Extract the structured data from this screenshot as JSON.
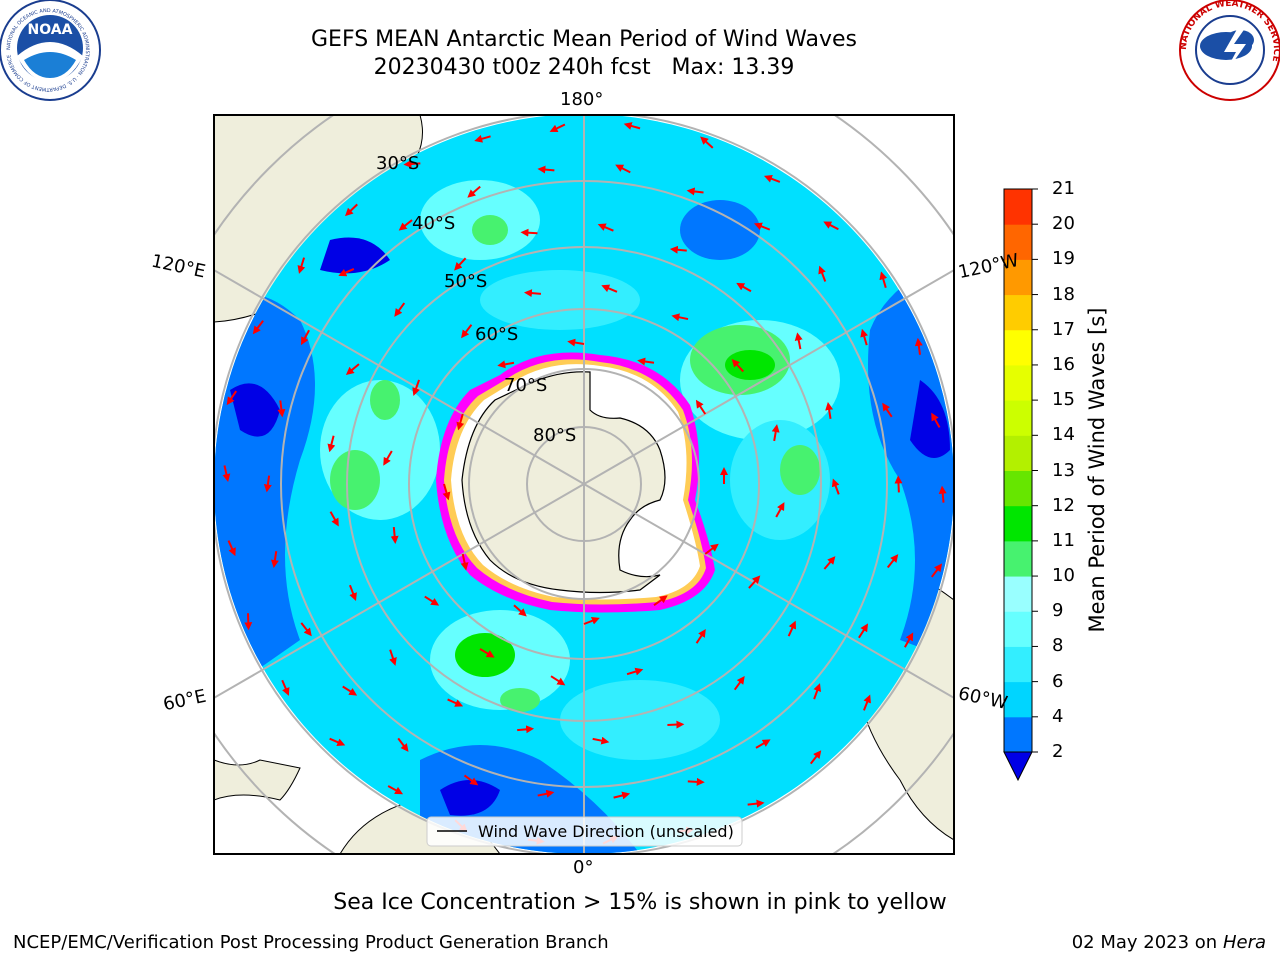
{
  "title_line1": "GEFS MEAN Antarctic Mean Period of Wind Waves",
  "title_line2": "20230430 t00z 240h fcst   Max: 13.39",
  "subtitle": "Sea Ice Concentration > 15% is shown in pink to yellow",
  "credit": "NCEP/EMC/Verification Post Processing Product Generation Branch",
  "date_text": "02 May 2023 on",
  "date_host": "Hera",
  "logos": {
    "left": "noaa-logo",
    "right": "nws-logo",
    "left_ring_text": "NATIONAL OCEANIC AND ATMOSPHERIC ADMINISTRATION · U.S. DEPARTMENT OF COMMERCE",
    "left_center_text": "NOAA",
    "right_ring_text": "NATIONAL WEATHER SERVICE"
  },
  "legend_label": "Wind Wave Direction (unscaled)",
  "map": {
    "projection": "south-polar-stereographic",
    "lon_labels": {
      "top": "180°",
      "bottom": "0°",
      "upper_left": "120°E",
      "upper_right": "120°W",
      "lower_left": "60°E",
      "lower_right": "60°W"
    },
    "lat_labels": [
      "30°S",
      "40°S",
      "50°S",
      "60°S",
      "70°S",
      "80°S"
    ],
    "colors": {
      "land": "#efeedc",
      "ice": "#ffffff",
      "ice_edge": "#ff00ff",
      "grid": "#b3b3b3",
      "arrow": "#ff0000"
    }
  },
  "colorbar": {
    "label": "Mean Period of Wind Waves [s]",
    "ticks": [
      "2",
      "4",
      "6",
      "8",
      "9",
      "10",
      "11",
      "12",
      "13",
      "14",
      "15",
      "16",
      "17",
      "18",
      "19",
      "20",
      "21"
    ],
    "colors": [
      "#0000e6",
      "#0077ff",
      "#00d5ff",
      "#33eeff",
      "#66ffff",
      "#99ffff",
      "#47f26f",
      "#00e600",
      "#66e600",
      "#b3f000",
      "#ccff00",
      "#e6ff00",
      "#ffff00",
      "#ffcc00",
      "#ff9900",
      "#ff6600",
      "#ff3300",
      "#ff0000"
    ],
    "under_color": "#0000e6"
  }
}
